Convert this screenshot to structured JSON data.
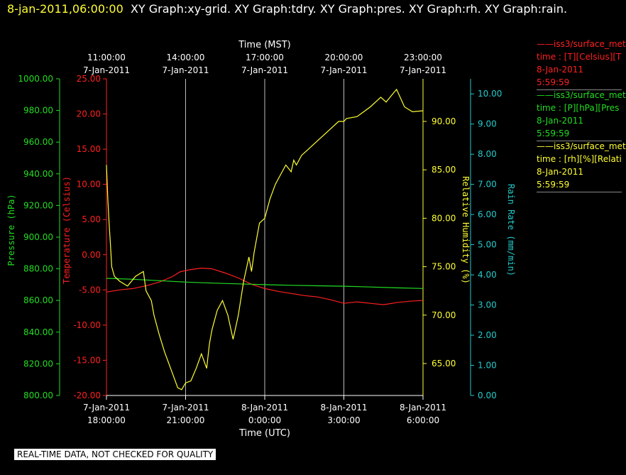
{
  "header": {
    "timestamp": "8-jan-2011,06:00:00",
    "graphs": "XY Graph:xy-grid.  XY Graph:tdry.  XY Graph:pres.  XY Graph:rh.  XY Graph:rain."
  },
  "legend": [
    {
      "color": "#ff2020",
      "lines": [
        "——iss3/surface_met",
        "time : [T][Celsius][T",
        "8-Jan-2011",
        "5:59:59"
      ]
    },
    {
      "color": "#22dd22",
      "lines": [
        "——iss3/surface_met",
        "time : [P][hPa][Pres",
        "8-Jan-2011",
        "5:59:59"
      ]
    },
    {
      "color": "#ffff33",
      "lines": [
        "——iss3/surface_met",
        "time : [rh][%][Relati",
        "8-Jan-2011",
        "5:59:59"
      ]
    }
  ],
  "footer": "REAL-TIME DATA, NOT CHECKED FOR QUALITY",
  "chart_data": {
    "type": "line",
    "xlim_hours": [
      0,
      12
    ],
    "top_axis": {
      "label": "Time (MST)",
      "ticks": [
        {
          "h": 0,
          "l1": "11:00:00",
          "l2": "7-Jan-2011"
        },
        {
          "h": 3,
          "l1": "14:00:00",
          "l2": "7-Jan-2011"
        },
        {
          "h": 6,
          "l1": "17:00:00",
          "l2": "7-Jan-2011"
        },
        {
          "h": 9,
          "l1": "20:00:00",
          "l2": "7-Jan-2011"
        },
        {
          "h": 12,
          "l1": "23:00:00",
          "l2": "7-Jan-2011"
        }
      ]
    },
    "bottom_axis": {
      "label": "Time (UTC)",
      "ticks": [
        {
          "h": 0,
          "l1": "7-Jan-2011",
          "l2": "18:00:00"
        },
        {
          "h": 3,
          "l1": "7-Jan-2011",
          "l2": "21:00:00"
        },
        {
          "h": 6,
          "l1": "8-Jan-2011",
          "l2": "0:00:00"
        },
        {
          "h": 9,
          "l1": "8-Jan-2011",
          "l2": "3:00:00"
        },
        {
          "h": 12,
          "l1": "8-Jan-2011",
          "l2": "6:00:00"
        }
      ]
    },
    "axes": {
      "pressure": {
        "label": "Pressure (hPa)",
        "color": "#22dd22",
        "ylim": [
          800,
          1000
        ],
        "ticks": [
          "800.00",
          "820.00",
          "840.00",
          "860.00",
          "880.00",
          "900.00",
          "920.00",
          "940.00",
          "960.00",
          "980.00",
          "1000.00"
        ]
      },
      "temperature": {
        "label": "Temperature (Celsius)",
        "color": "#ff2020",
        "ylim": [
          -20,
          25
        ],
        "ticks": [
          "-20.00",
          "-15.00",
          "-10.00",
          "-5.00",
          "0.00",
          "5.00",
          "10.00",
          "15.00",
          "20.00",
          "25.00"
        ]
      },
      "rh": {
        "label": "Relative Humidity (%)",
        "color": "#ffff33",
        "ylim": [
          61.7,
          94.4
        ],
        "ticks": [
          "65.00",
          "70.00",
          "75.00",
          "80.00",
          "85.00",
          "90.00"
        ]
      },
      "rain": {
        "label": "Rain Rate (mm/min)",
        "color": "#22cccc",
        "ylim": [
          0,
          10.5
        ],
        "ticks": [
          "0.00",
          "1.00",
          "2.00",
          "3.00",
          "4.00",
          "5.00",
          "6.00",
          "7.00",
          "8.00",
          "9.00",
          "10.00"
        ]
      }
    },
    "series": [
      {
        "axis": "temperature",
        "color": "#ff2020",
        "x": [
          0,
          0.5,
          1,
          1.5,
          2,
          2.5,
          2.8,
          3.2,
          3.6,
          4,
          4.5,
          5,
          5.5,
          6,
          6.5,
          7,
          7.5,
          8,
          8.5,
          9,
          9.5,
          10,
          10.5,
          11,
          11.5,
          12
        ],
        "y": [
          -5.3,
          -5.0,
          -4.8,
          -4.4,
          -3.9,
          -3.1,
          -2.4,
          -2.1,
          -1.9,
          -2.0,
          -2.6,
          -3.3,
          -4.2,
          -4.8,
          -5.2,
          -5.5,
          -5.8,
          -6.0,
          -6.4,
          -6.9,
          -6.7,
          -6.9,
          -7.1,
          -6.8,
          -6.6,
          -6.5
        ]
      },
      {
        "axis": "pressure",
        "color": "#22dd22",
        "x": [
          0,
          1,
          2,
          3,
          4,
          5,
          6,
          7,
          8,
          9,
          10,
          11,
          12
        ],
        "y": [
          874.0,
          873.4,
          872.5,
          871.6,
          871.0,
          870.5,
          870.0,
          869.6,
          869.3,
          869.0,
          868.5,
          868.0,
          867.6
        ]
      },
      {
        "axis": "rh",
        "color": "#ffff33",
        "x": [
          0,
          0.05,
          0.1,
          0.15,
          0.2,
          0.3,
          0.5,
          0.8,
          1.1,
          1.4,
          1.5,
          1.7,
          1.8,
          2.0,
          2.2,
          2.5,
          2.7,
          2.85,
          3.0,
          3.2,
          3.4,
          3.6,
          3.8,
          3.9,
          4.0,
          4.2,
          4.4,
          4.6,
          4.8,
          5.0,
          5.2,
          5.4,
          5.5,
          5.6,
          5.8,
          6.0,
          6.2,
          6.4,
          6.6,
          6.8,
          7.0,
          7.1,
          7.2,
          7.4,
          7.6,
          8.0,
          8.4,
          8.8,
          9.0,
          9.1,
          9.5,
          10.0,
          10.4,
          10.6,
          10.9,
          11.0,
          11.3,
          11.6,
          12.0
        ],
        "y": [
          85.5,
          82.0,
          79.5,
          77.3,
          75.0,
          74.0,
          73.5,
          73.0,
          74.0,
          74.5,
          72.5,
          71.5,
          70.0,
          68.0,
          66.2,
          64.0,
          62.5,
          62.3,
          63.0,
          63.2,
          64.5,
          66.0,
          64.5,
          67.0,
          68.5,
          70.5,
          71.5,
          70.0,
          67.5,
          70.0,
          73.5,
          76.0,
          74.5,
          76.5,
          79.5,
          80.0,
          82.0,
          83.5,
          84.5,
          85.5,
          84.8,
          86.0,
          85.5,
          86.5,
          87.0,
          88.0,
          89.0,
          90.0,
          90.0,
          90.3,
          90.5,
          91.5,
          92.5,
          92.0,
          93.0,
          93.3,
          91.5,
          91.0,
          91.1
        ]
      }
    ]
  }
}
